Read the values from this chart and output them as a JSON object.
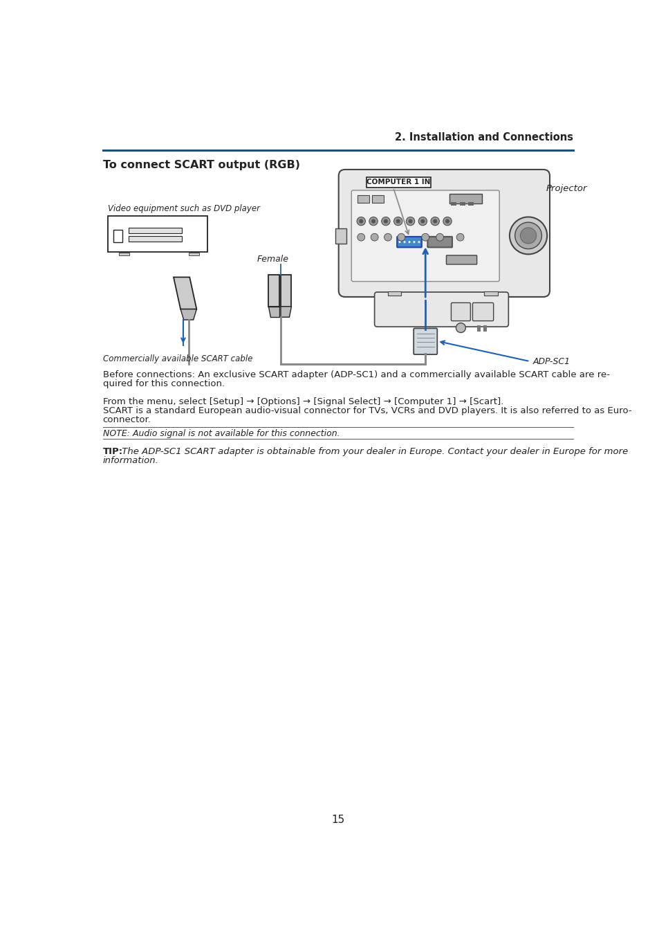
{
  "bg_color": "#ffffff",
  "header_line_color": "#1a5276",
  "header_text": "2. Installation and Connections",
  "section_title": "To connect SCART output (RGB)",
  "page_number": "15",
  "p1_l1": "Before connections: An exclusive SCART adapter (ADP-SC1) and a commercially available SCART cable are re-",
  "p1_l2": "quired for this connection.",
  "p2_l1": "From the menu, select [Setup] → [Options] → [Signal Select] → [Computer 1] → [Scart].",
  "p2_l2": "SCART is a standard European audio-visual connector for TVs, VCRs and DVD players. It is also referred to as Euro-",
  "p2_l3": "connector.",
  "note": "NOTE: Audio signal is not available for this connection.",
  "tip_label": "TIP:",
  "tip_l1": " The ADP-SC1 SCART adapter is obtainable from your dealer in Europe. Contact your dealer in Europe for more",
  "tip_l2": "information.",
  "label_video": "Video equipment such as DVD player",
  "label_female": "Female",
  "label_scart_cable": "Commercially available SCART cable",
  "label_adpsc1": "ADP-SC1",
  "label_projector": "Projector",
  "label_computer1in": "COMPUTER 1 IN",
  "blue": "#2060b0",
  "dark": "#222222",
  "mid": "#888888",
  "light": "#cccccc",
  "lighter": "#e8e8e8",
  "outline": "#444444"
}
